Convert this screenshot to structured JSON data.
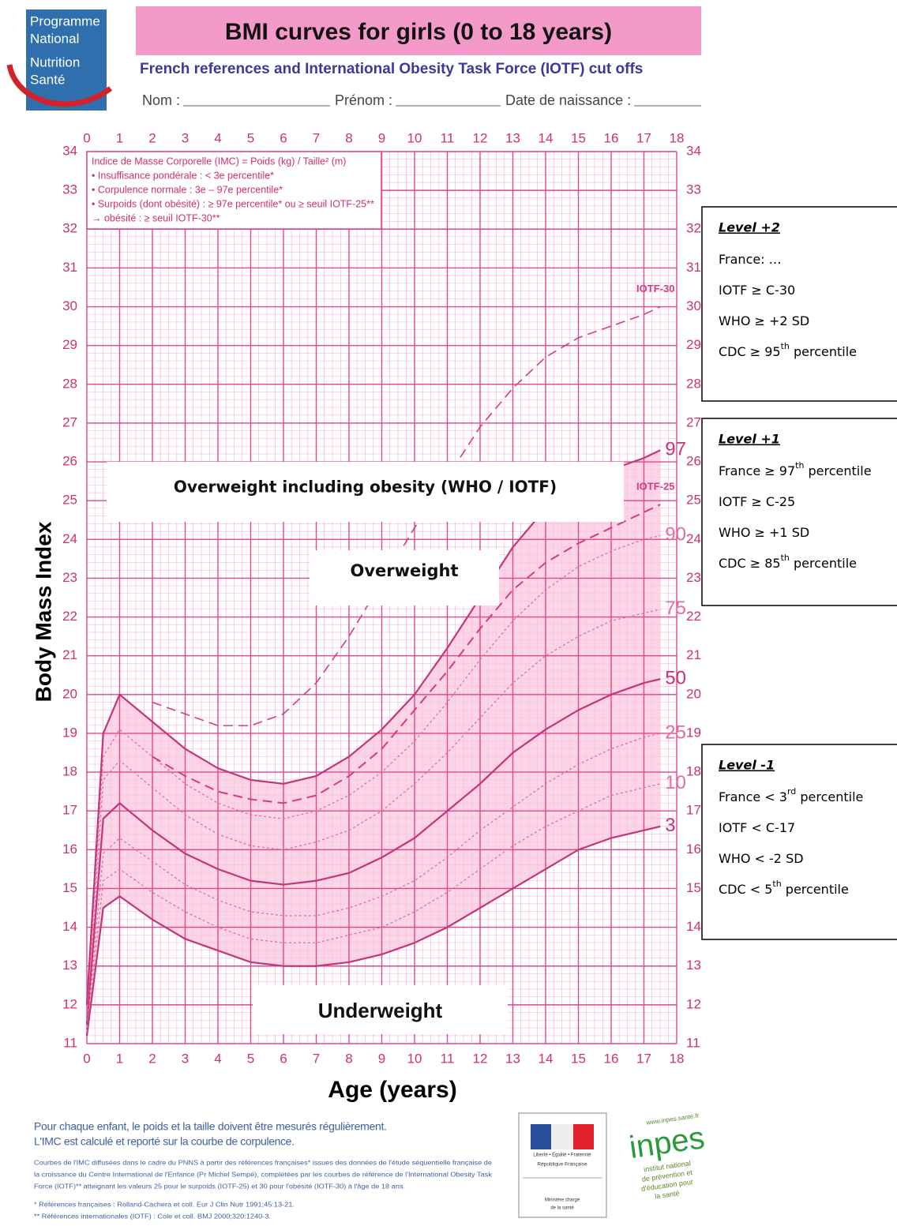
{
  "logo": [
    "Programme",
    "National",
    "Nutrition",
    "Santé"
  ],
  "header": {
    "title": "BMI curves for girls (0 to 18 years)",
    "subtitle": "French references and International Obesity Task Force (IOTF) cut offs",
    "fields": [
      "Nom :",
      "Prénom :",
      "Date de naissance :"
    ]
  },
  "chart_data": {
    "type": "line",
    "x_label": "Age (years)",
    "y_label": "Body Mass Index",
    "x": [
      0,
      0.5,
      1,
      2,
      3,
      4,
      5,
      6,
      7,
      8,
      9,
      10,
      11,
      12,
      13,
      14,
      15,
      16,
      17,
      17.5
    ],
    "xlim": [
      0,
      18
    ],
    "xticks": [
      0,
      1,
      2,
      3,
      4,
      5,
      6,
      7,
      8,
      9,
      10,
      11,
      12,
      13,
      14,
      15,
      16,
      17,
      18
    ],
    "ylim": [
      11,
      34
    ],
    "yticks": [
      11,
      12,
      13,
      14,
      15,
      16,
      17,
      18,
      19,
      20,
      21,
      22,
      23,
      24,
      25,
      26,
      27,
      28,
      29,
      30,
      31,
      32,
      33,
      34
    ],
    "grid": true,
    "grid_color": "#e2468d",
    "band_color": "#f9c6dc",
    "series": [
      {
        "name": "3",
        "color": "#c2357a",
        "style": "solid",
        "width": 2.2,
        "values": [
          11.2,
          14.5,
          14.8,
          14.2,
          13.7,
          13.4,
          13.1,
          13.0,
          13.0,
          13.1,
          13.3,
          13.6,
          14.0,
          14.5,
          15.0,
          15.5,
          16.0,
          16.3,
          16.5,
          16.6
        ]
      },
      {
        "name": "10",
        "color": "#e0709f",
        "style": "dotted",
        "width": 1.3,
        "values": [
          11.3,
          15.2,
          15.5,
          14.9,
          14.4,
          14.0,
          13.7,
          13.6,
          13.6,
          13.8,
          14.0,
          14.4,
          14.9,
          15.5,
          16.1,
          16.6,
          17.0,
          17.4,
          17.6,
          17.7
        ]
      },
      {
        "name": "25",
        "color": "#e0709f",
        "style": "dotted",
        "width": 1.3,
        "values": [
          11.4,
          15.9,
          16.3,
          15.7,
          15.1,
          14.7,
          14.4,
          14.3,
          14.3,
          14.5,
          14.8,
          15.2,
          15.8,
          16.5,
          17.1,
          17.7,
          18.2,
          18.6,
          18.9,
          19.0
        ]
      },
      {
        "name": "50",
        "color": "#c2357a",
        "style": "solid",
        "width": 2.2,
        "values": [
          11.5,
          16.8,
          17.2,
          16.5,
          15.9,
          15.5,
          15.2,
          15.1,
          15.2,
          15.4,
          15.8,
          16.3,
          17.0,
          17.7,
          18.5,
          19.1,
          19.6,
          20.0,
          20.3,
          20.4
        ]
      },
      {
        "name": "75",
        "color": "#e0709f",
        "style": "dotted",
        "width": 1.3,
        "values": [
          11.6,
          17.8,
          18.3,
          17.6,
          16.9,
          16.4,
          16.1,
          16.0,
          16.2,
          16.5,
          17.0,
          17.7,
          18.5,
          19.4,
          20.3,
          21.0,
          21.5,
          21.9,
          22.1,
          22.2
        ]
      },
      {
        "name": "90",
        "color": "#e0709f",
        "style": "dotted",
        "width": 1.3,
        "values": [
          11.8,
          18.4,
          19.1,
          18.4,
          17.7,
          17.2,
          16.9,
          16.8,
          17.0,
          17.4,
          18.0,
          18.8,
          19.8,
          20.9,
          21.9,
          22.7,
          23.3,
          23.7,
          24.0,
          24.1
        ]
      },
      {
        "name": "97",
        "color": "#c2357a",
        "style": "solid",
        "width": 2.2,
        "values": [
          12.0,
          19.0,
          20.0,
          19.3,
          18.6,
          18.1,
          17.8,
          17.7,
          17.9,
          18.4,
          19.1,
          20.0,
          21.2,
          22.5,
          23.8,
          24.8,
          25.4,
          25.8,
          26.1,
          26.3
        ]
      },
      {
        "name": "IOTF-25",
        "color": "#d23c82",
        "style": "dashed",
        "width": 2,
        "values": [
          null,
          null,
          null,
          18.4,
          17.9,
          17.5,
          17.3,
          17.2,
          17.4,
          17.9,
          18.6,
          19.6,
          20.6,
          21.7,
          22.7,
          23.4,
          23.9,
          24.3,
          24.7,
          24.9
        ]
      },
      {
        "name": "IOTF-30",
        "color": "#d23c82",
        "style": "dashed",
        "width": 1.6,
        "values": [
          null,
          null,
          null,
          19.8,
          19.5,
          19.2,
          19.2,
          19.5,
          20.3,
          21.5,
          22.9,
          24.3,
          25.6,
          26.9,
          27.9,
          28.7,
          29.2,
          29.5,
          29.8,
          30.0
        ]
      }
    ],
    "legend_note": [
      "Indice de Masse Corporelle (IMC) = Poids (kg) / Taille² (m)",
      "• Insuffisance pondérale : < 3e percentile*",
      "• Corpulence normale : 3e – 97e percentile*",
      "• Surpoids (dont obésité) : ≥ 97e percentile* ou ≥ seuil IOTF-25**",
      "   → obésité : ≥ seuil IOTF-30**"
    ],
    "annotations": [
      "Overweight including obesity (WHO / IOTF)",
      "Overweight",
      "Underweight"
    ]
  },
  "side_boxes": [
    {
      "title": "Level +2",
      "lines": [
        [
          "France: …"
        ],
        [
          "IOTF ≥ C-30"
        ],
        [
          "WHO ≥ +2 SD"
        ],
        [
          "CDC ≥ 95",
          "th",
          " percentile"
        ]
      ]
    },
    {
      "title": "Level +1",
      "lines": [
        [
          "France ≥ 97",
          "th",
          " percentile"
        ],
        [
          "IOTF ≥ C-25"
        ],
        [
          "WHO ≥ +1 SD"
        ],
        [
          "CDC ≥ 85",
          "th",
          " percentile"
        ]
      ]
    },
    {
      "title": "Level -1",
      "lines": [
        [
          "France < 3",
          "rd",
          " percentile"
        ],
        [
          "IOTF < C-17"
        ],
        [
          "WHO < -2 SD"
        ],
        [
          "CDC < 5",
          "th",
          " percentile"
        ]
      ]
    }
  ],
  "footer": {
    "lines": [
      "Pour chaque enfant, le poids et la taille doivent être mesurés régulièrement.",
      "L'IMC est calculé et reporté sur la courbe de corpulence."
    ],
    "notes": [
      "Courbes de l'IMC diffusées dans le cadre du PNNS à partir des références françaises* issues des données de l'étude séquentielle française de",
      "la croissance du Centre International de l'Enfance (Pr Michel Sempé), complétées par les courbes de référence de l'International Obesity Task",
      "Force (IOTF)** atteignant les valeurs 25 pour le surpoids (IOTF-25) et 30 pour l'obésité (IOTF-30) à l'âge de 18 ans.",
      "* Références françaises : Rolland-Cachera et coll. Eur J Clin Nutr 1991;45:13-21.",
      "** Références internationales (IOTF) : Cole et coll. BMJ 2000;320:1240-3."
    ],
    "republic": [
      "Liberté • Égalité • Fraternité",
      "République Française",
      "Ministère chargé",
      "de la santé"
    ],
    "inpes": [
      "www.inpes.sante.fr",
      "inpes",
      "institut national",
      "de prévention et",
      "d'éducation pour",
      "la santé"
    ]
  }
}
